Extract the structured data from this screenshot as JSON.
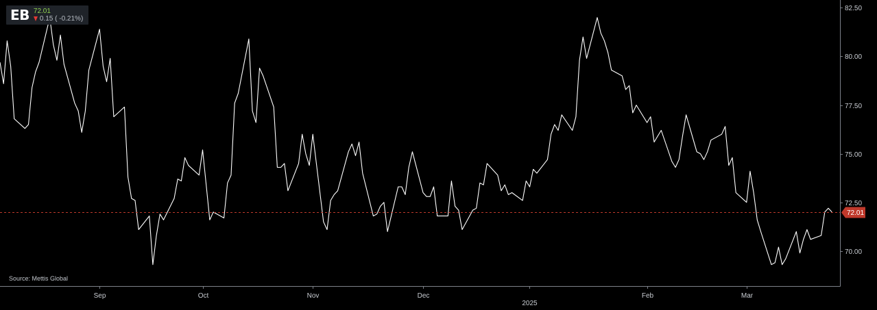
{
  "ticker": {
    "symbol": "EB",
    "last_price": "72.01",
    "change_text": "0.15 ( -0.21%)"
  },
  "source_text": "Source: Mettis Global",
  "colors": {
    "background": "#000000",
    "line": "#ffffff",
    "last_price_line": "#c0392b",
    "last_price_tag": "#c0392b",
    "up": "#8fd14f",
    "down": "#e53935",
    "axis_text": "#c9cdd3"
  },
  "chart_data": {
    "type": "line",
    "title": "",
    "xlabel": "",
    "ylabel": "",
    "ylim": [
      68.2,
      82.9
    ],
    "y_ticks": [
      "82.50",
      "80.00",
      "77.50",
      "75.00",
      "72.50",
      "70.00"
    ],
    "x_tick_labels": [
      {
        "label": "Sep",
        "date": "2024-09-02",
        "year": ""
      },
      {
        "label": "Oct",
        "date": "2024-10-01",
        "year": ""
      },
      {
        "label": "Nov",
        "date": "2024-11-01",
        "year": ""
      },
      {
        "label": "Dec",
        "date": "2024-12-02",
        "year": ""
      },
      {
        "label": "",
        "date": "2025-01-01",
        "year": "2025"
      },
      {
        "label": "Feb",
        "date": "2025-02-03",
        "year": ""
      },
      {
        "label": "Mar",
        "date": "2025-03-03",
        "year": ""
      }
    ],
    "x_range": [
      "2024-08-05",
      "2025-03-26"
    ],
    "last_price_label": "72.01",
    "last_price_value": 72.01,
    "grid": false,
    "legend": "none",
    "series": [
      {
        "values": [
          [
            "2024-08-05",
            79.7
          ],
          [
            "2024-08-06",
            78.6
          ],
          [
            "2024-08-07",
            80.8
          ],
          [
            "2024-08-08",
            79.5
          ],
          [
            "2024-08-09",
            76.8
          ],
          [
            "2024-08-12",
            76.3
          ],
          [
            "2024-08-13",
            76.5
          ],
          [
            "2024-08-14",
            78.4
          ],
          [
            "2024-08-15",
            79.2
          ],
          [
            "2024-08-16",
            79.7
          ],
          [
            "2024-08-19",
            82.0
          ],
          [
            "2024-08-20",
            80.6
          ],
          [
            "2024-08-21",
            79.8
          ],
          [
            "2024-08-22",
            81.1
          ],
          [
            "2024-08-23",
            79.6
          ],
          [
            "2024-08-26",
            77.6
          ],
          [
            "2024-08-27",
            77.2
          ],
          [
            "2024-08-28",
            76.1
          ],
          [
            "2024-08-29",
            77.2
          ],
          [
            "2024-08-30",
            79.3
          ],
          [
            "2024-09-02",
            81.4
          ],
          [
            "2024-09-03",
            79.5
          ],
          [
            "2024-09-04",
            78.7
          ],
          [
            "2024-09-05",
            79.9
          ],
          [
            "2024-09-06",
            76.9
          ],
          [
            "2024-09-09",
            77.4
          ],
          [
            "2024-09-10",
            73.8
          ],
          [
            "2024-09-11",
            72.7
          ],
          [
            "2024-09-12",
            72.6
          ],
          [
            "2024-09-13",
            71.1
          ],
          [
            "2024-09-16",
            71.8
          ],
          [
            "2024-09-17",
            69.3
          ],
          [
            "2024-09-18",
            70.8
          ],
          [
            "2024-09-19",
            71.9
          ],
          [
            "2024-09-20",
            71.6
          ],
          [
            "2024-09-23",
            72.7
          ],
          [
            "2024-09-24",
            73.7
          ],
          [
            "2024-09-25",
            73.6
          ],
          [
            "2024-09-26",
            74.8
          ],
          [
            "2024-09-27",
            74.4
          ],
          [
            "2024-09-30",
            73.9
          ],
          [
            "2024-10-01",
            75.2
          ],
          [
            "2024-10-02",
            73.4
          ],
          [
            "2024-10-03",
            71.6
          ],
          [
            "2024-10-04",
            72.0
          ],
          [
            "2024-10-07",
            71.7
          ],
          [
            "2024-10-08",
            73.5
          ],
          [
            "2024-10-09",
            73.9
          ],
          [
            "2024-10-10",
            77.6
          ],
          [
            "2024-10-11",
            78.1
          ],
          [
            "2024-10-14",
            80.9
          ],
          [
            "2024-10-15",
            77.2
          ],
          [
            "2024-10-16",
            76.6
          ],
          [
            "2024-10-17",
            79.4
          ],
          [
            "2024-10-18",
            79.0
          ],
          [
            "2024-10-21",
            77.4
          ],
          [
            "2024-10-22",
            74.3
          ],
          [
            "2024-10-23",
            74.3
          ],
          [
            "2024-10-24",
            74.5
          ],
          [
            "2024-10-25",
            73.1
          ],
          [
            "2024-10-28",
            74.5
          ],
          [
            "2024-10-29",
            76.0
          ],
          [
            "2024-10-30",
            75.0
          ],
          [
            "2024-10-31",
            74.4
          ],
          [
            "2024-11-01",
            76.0
          ],
          [
            "2024-11-04",
            71.5
          ],
          [
            "2024-11-05",
            71.1
          ],
          [
            "2024-11-06",
            72.6
          ],
          [
            "2024-11-07",
            72.9
          ],
          [
            "2024-11-08",
            73.1
          ],
          [
            "2024-11-11",
            75.1
          ],
          [
            "2024-11-12",
            75.5
          ],
          [
            "2024-11-13",
            74.9
          ],
          [
            "2024-11-14",
            75.6
          ],
          [
            "2024-11-15",
            74.0
          ],
          [
            "2024-11-18",
            71.8
          ],
          [
            "2024-11-19",
            71.9
          ],
          [
            "2024-11-20",
            72.3
          ],
          [
            "2024-11-21",
            72.5
          ],
          [
            "2024-11-22",
            71.0
          ],
          [
            "2024-11-25",
            73.3
          ],
          [
            "2024-11-26",
            73.3
          ],
          [
            "2024-11-27",
            72.9
          ],
          [
            "2024-11-28",
            74.3
          ],
          [
            "2024-11-29",
            75.1
          ],
          [
            "2024-12-02",
            73.0
          ],
          [
            "2024-12-03",
            72.8
          ],
          [
            "2024-12-04",
            72.8
          ],
          [
            "2024-12-05",
            73.3
          ],
          [
            "2024-12-06",
            71.8
          ],
          [
            "2024-12-09",
            71.8
          ],
          [
            "2024-12-10",
            73.6
          ],
          [
            "2024-12-11",
            72.3
          ],
          [
            "2024-12-12",
            72.1
          ],
          [
            "2024-12-13",
            71.1
          ],
          [
            "2024-12-16",
            72.1
          ],
          [
            "2024-12-17",
            72.2
          ],
          [
            "2024-12-18",
            73.5
          ],
          [
            "2024-12-19",
            73.4
          ],
          [
            "2024-12-20",
            74.5
          ],
          [
            "2024-12-23",
            73.9
          ],
          [
            "2024-12-24",
            73.1
          ],
          [
            "2024-12-25",
            73.4
          ],
          [
            "2024-12-26",
            72.9
          ],
          [
            "2024-12-27",
            73.0
          ],
          [
            "2024-12-30",
            72.6
          ],
          [
            "2024-12-31",
            73.6
          ],
          [
            "2025-01-01",
            73.3
          ],
          [
            "2025-01-02",
            74.2
          ],
          [
            "2025-01-03",
            74.0
          ],
          [
            "2025-01-06",
            74.7
          ],
          [
            "2025-01-07",
            76.0
          ],
          [
            "2025-01-08",
            76.5
          ],
          [
            "2025-01-09",
            76.2
          ],
          [
            "2025-01-10",
            77.0
          ],
          [
            "2025-01-13",
            76.2
          ],
          [
            "2025-01-14",
            76.9
          ],
          [
            "2025-01-15",
            79.8
          ],
          [
            "2025-01-16",
            81.0
          ],
          [
            "2025-01-17",
            79.9
          ],
          [
            "2025-01-20",
            82.0
          ],
          [
            "2025-01-21",
            81.2
          ],
          [
            "2025-01-22",
            80.8
          ],
          [
            "2025-01-23",
            80.2
          ],
          [
            "2025-01-24",
            79.3
          ],
          [
            "2025-01-27",
            79.0
          ],
          [
            "2025-01-28",
            78.3
          ],
          [
            "2025-01-29",
            78.5
          ],
          [
            "2025-01-30",
            77.1
          ],
          [
            "2025-01-31",
            77.5
          ],
          [
            "2025-02-03",
            76.6
          ],
          [
            "2025-02-04",
            76.9
          ],
          [
            "2025-02-05",
            75.6
          ],
          [
            "2025-02-06",
            75.9
          ],
          [
            "2025-02-07",
            76.2
          ],
          [
            "2025-02-10",
            74.6
          ],
          [
            "2025-02-11",
            74.3
          ],
          [
            "2025-02-12",
            74.7
          ],
          [
            "2025-02-13",
            75.9
          ],
          [
            "2025-02-14",
            77.0
          ],
          [
            "2025-02-17",
            75.1
          ],
          [
            "2025-02-18",
            75.0
          ],
          [
            "2025-02-19",
            74.7
          ],
          [
            "2025-02-20",
            75.1
          ],
          [
            "2025-02-21",
            75.7
          ],
          [
            "2025-02-24",
            76.0
          ],
          [
            "2025-02-25",
            76.4
          ],
          [
            "2025-02-26",
            74.4
          ],
          [
            "2025-02-27",
            74.8
          ],
          [
            "2025-02-28",
            73.0
          ],
          [
            "2025-03-03",
            72.5
          ],
          [
            "2025-03-04",
            74.1
          ],
          [
            "2025-03-05",
            73.0
          ],
          [
            "2025-03-06",
            71.6
          ],
          [
            "2025-03-07",
            71.0
          ],
          [
            "2025-03-10",
            69.3
          ],
          [
            "2025-03-11",
            69.4
          ],
          [
            "2025-03-12",
            70.2
          ],
          [
            "2025-03-13",
            69.3
          ],
          [
            "2025-03-14",
            69.6
          ],
          [
            "2025-03-17",
            71.0
          ],
          [
            "2025-03-18",
            69.9
          ],
          [
            "2025-03-19",
            70.6
          ],
          [
            "2025-03-20",
            71.1
          ],
          [
            "2025-03-21",
            70.6
          ],
          [
            "2025-03-24",
            70.8
          ],
          [
            "2025-03-25",
            72.0
          ],
          [
            "2025-03-26",
            72.2
          ],
          [
            "2025-03-27",
            72.01
          ]
        ]
      }
    ]
  }
}
